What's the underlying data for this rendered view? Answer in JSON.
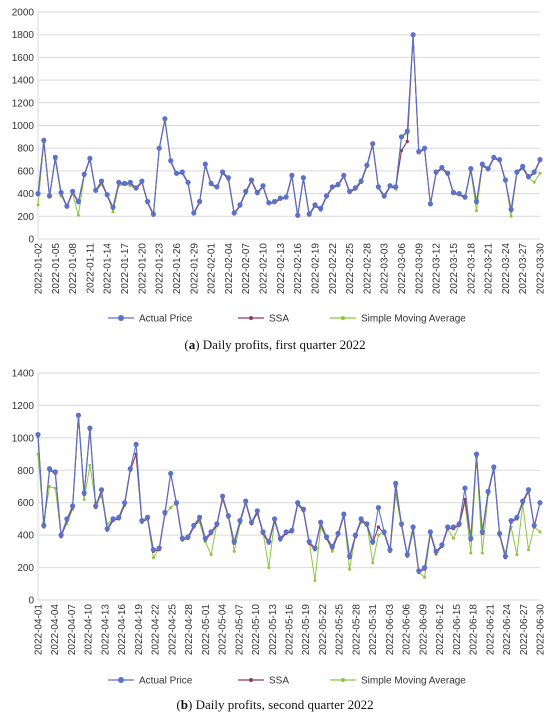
{
  "chart_data": [
    {
      "type": "line",
      "title": "",
      "xlabel": "",
      "ylabel": "",
      "ylim": [
        0,
        2000
      ],
      "yticks": [
        0,
        200,
        400,
        600,
        800,
        1000,
        1200,
        1400,
        1600,
        1800,
        2000
      ],
      "grid": true,
      "legend_position": "bottom",
      "tick_labels": [
        "2022-01-02",
        "2022-01-05",
        "2022-01-08",
        "2022-01-11",
        "2022-01-14",
        "2022-01-17",
        "2022-01-20",
        "2022-01-23",
        "2022-01-26",
        "2022-01-29",
        "2022-02-01",
        "2022-02-04",
        "2022-02-07",
        "2022-02-10",
        "2022-02-13",
        "2022-02-16",
        "2022-02-19",
        "2022-02-22",
        "2022-02-25",
        "2022-02-28",
        "2022-03-03",
        "2022-03-06",
        "2022-03-09",
        "2022-03-12",
        "2022-03-15",
        "2022-03-18",
        "2022-03-21",
        "2022-03-24",
        "2022-03-27",
        "2022-03-30"
      ],
      "series": [
        {
          "name": "Actual Price",
          "color": "#5a72c8",
          "values": [
            400,
            870,
            380,
            720,
            410,
            290,
            420,
            330,
            570,
            710,
            430,
            510,
            390,
            280,
            500,
            490,
            500,
            450,
            510,
            330,
            220,
            800,
            1060,
            690,
            580,
            590,
            500,
            230,
            330,
            660,
            490,
            460,
            590,
            540,
            230,
            300,
            420,
            520,
            410,
            470,
            320,
            330,
            360,
            370,
            560,
            210,
            540,
            220,
            300,
            270,
            380,
            460,
            480,
            560,
            420,
            450,
            510,
            650,
            840,
            460,
            380,
            470,
            460,
            900,
            950,
            1800,
            770,
            800,
            310,
            590,
            630,
            580,
            410,
            400,
            370,
            620,
            330,
            660,
            620,
            720,
            700,
            520,
            260,
            590,
            640,
            550,
            590,
            700
          ]
        },
        {
          "name": "SSA",
          "color": "#8b3a62",
          "values": [
            390,
            860,
            370,
            710,
            400,
            280,
            410,
            320,
            560,
            700,
            420,
            500,
            380,
            270,
            490,
            480,
            490,
            440,
            500,
            320,
            210,
            790,
            1050,
            680,
            570,
            580,
            490,
            220,
            320,
            650,
            480,
            450,
            580,
            530,
            220,
            290,
            410,
            510,
            400,
            460,
            310,
            320,
            350,
            360,
            550,
            200,
            530,
            210,
            290,
            260,
            370,
            450,
            470,
            550,
            410,
            440,
            500,
            640,
            830,
            450,
            370,
            460,
            450,
            780,
            860,
            1790,
            760,
            790,
            300,
            580,
            620,
            570,
            400,
            390,
            360,
            610,
            320,
            650,
            610,
            710,
            690,
            510,
            250,
            580,
            630,
            540,
            580,
            690
          ]
        },
        {
          "name": "Simple Moving Average",
          "color": "#8cc63f",
          "values": [
            300,
            850,
            380,
            700,
            380,
            300,
            400,
            210,
            560,
            720,
            420,
            480,
            390,
            240,
            470,
            480,
            470,
            440,
            500,
            320,
            210,
            800,
            1050,
            680,
            570,
            580,
            500,
            220,
            320,
            650,
            490,
            450,
            590,
            520,
            220,
            300,
            400,
            510,
            400,
            470,
            310,
            330,
            350,
            370,
            560,
            200,
            540,
            220,
            300,
            250,
            380,
            450,
            480,
            560,
            410,
            450,
            520,
            650,
            830,
            450,
            390,
            460,
            440,
            900,
            930,
            1790,
            760,
            790,
            300,
            580,
            620,
            570,
            410,
            400,
            360,
            600,
            250,
            640,
            620,
            720,
            700,
            520,
            200,
            580,
            620,
            540,
            500,
            580
          ]
        }
      ]
    },
    {
      "type": "line",
      "title": "",
      "xlabel": "",
      "ylabel": "",
      "ylim": [
        0,
        1400
      ],
      "yticks": [
        0,
        200,
        400,
        600,
        800,
        1000,
        1200,
        1400
      ],
      "grid": true,
      "legend_position": "bottom",
      "tick_labels": [
        "2022-04-01",
        "2022-04-04",
        "2022-04-07",
        "2022-04-10",
        "2022-04-13",
        "2022-04-16",
        "2022-04-19",
        "2022-04-22",
        "2022-04-25",
        "2022-04-28",
        "2022-05-01",
        "2022-05-04",
        "2022-05-07",
        "2022-05-10",
        "2022-05-13",
        "2022-05-16",
        "2022-05-19",
        "2022-05-22",
        "2022-05-25",
        "2022-05-28",
        "2022-05-31",
        "2022-06-03",
        "2022-06-06",
        "2022-06-09",
        "2022-06-12",
        "2022-06-15",
        "2022-06-18",
        "2022-06-21",
        "2022-06-24",
        "2022-06-27",
        "2022-06-30"
      ],
      "series": [
        {
          "name": "Actual Price",
          "color": "#5a72c8",
          "values": [
            1020,
            460,
            810,
            790,
            400,
            500,
            580,
            1140,
            660,
            1060,
            580,
            680,
            440,
            500,
            510,
            600,
            810,
            960,
            490,
            510,
            310,
            320,
            540,
            780,
            600,
            380,
            390,
            460,
            510,
            380,
            420,
            470,
            640,
            520,
            360,
            490,
            610,
            480,
            550,
            420,
            360,
            500,
            380,
            420,
            430,
            600,
            560,
            360,
            320,
            480,
            390,
            330,
            410,
            530,
            270,
            400,
            500,
            470,
            360,
            570,
            420,
            310,
            720,
            470,
            280,
            450,
            180,
            200,
            420,
            300,
            340,
            450,
            450,
            470,
            690,
            380,
            900,
            420,
            670,
            820,
            410,
            270,
            490,
            510,
            610,
            680,
            460,
            600
          ]
        },
        {
          "name": "SSA",
          "color": "#8b3a62",
          "values": [
            1010,
            450,
            800,
            780,
            390,
            490,
            570,
            1140,
            650,
            1050,
            570,
            670,
            430,
            490,
            500,
            590,
            800,
            900,
            480,
            500,
            300,
            310,
            530,
            780,
            590,
            370,
            380,
            450,
            500,
            370,
            410,
            460,
            630,
            510,
            350,
            480,
            600,
            470,
            540,
            410,
            350,
            490,
            370,
            410,
            420,
            590,
            550,
            350,
            310,
            470,
            380,
            320,
            400,
            520,
            260,
            390,
            490,
            460,
            350,
            450,
            410,
            300,
            700,
            460,
            270,
            440,
            170,
            190,
            410,
            290,
            330,
            440,
            440,
            460,
            620,
            370,
            890,
            410,
            660,
            810,
            400,
            260,
            480,
            500,
            600,
            670,
            450,
            600
          ]
        },
        {
          "name": "Simple Moving Average",
          "color": "#8cc63f",
          "values": [
            900,
            480,
            700,
            690,
            400,
            470,
            560,
            1140,
            620,
            830,
            600,
            640,
            470,
            500,
            500,
            580,
            800,
            900,
            480,
            500,
            260,
            320,
            530,
            570,
            600,
            370,
            380,
            460,
            480,
            360,
            280,
            470,
            620,
            520,
            300,
            470,
            600,
            480,
            530,
            420,
            200,
            490,
            370,
            420,
            420,
            590,
            550,
            360,
            120,
            450,
            380,
            300,
            400,
            520,
            190,
            400,
            480,
            470,
            230,
            400,
            420,
            300,
            650,
            460,
            270,
            420,
            170,
            140,
            410,
            280,
            340,
            440,
            380,
            460,
            600,
            290,
            880,
            290,
            650,
            810,
            400,
            290,
            450,
            280,
            590,
            310,
            450,
            420
          ]
        }
      ]
    }
  ],
  "legend": [
    "Actual Price",
    "SSA",
    "Simple Moving Average"
  ],
  "captions": [
    {
      "letter": "a",
      "text": " Daily profits, first quarter 2022"
    },
    {
      "letter": "b",
      "text": " Daily profits, second quarter 2022"
    }
  ]
}
